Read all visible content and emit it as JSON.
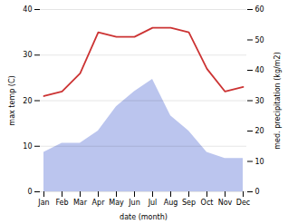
{
  "chart_data": {
    "type": "line",
    "xlabel": "date (month)",
    "ylabel": "max temp (C)",
    "y2label": "med. precipitation (kg/m2)",
    "categories": [
      "Jan",
      "Feb",
      "Mar",
      "Apr",
      "May",
      "Jun",
      "Jul",
      "Aug",
      "Sep",
      "Oct",
      "Nov",
      "Dec"
    ],
    "series": [
      {
        "type": "area",
        "axis": "y2",
        "color": "#bbc5ee",
        "values": [
          13,
          16,
          16,
          20,
          28,
          33,
          37,
          25,
          20,
          13,
          11,
          11
        ]
      },
      {
        "type": "line",
        "axis": "y",
        "color": "#cc3333",
        "values": [
          21,
          22,
          26,
          35,
          34,
          34,
          36,
          36,
          35,
          27,
          22,
          23
        ]
      }
    ],
    "ylim": [
      0,
      40
    ],
    "yticks": [
      0,
      10,
      20,
      30,
      40
    ],
    "y2lim": [
      0,
      60
    ],
    "y2ticks": [
      0,
      10,
      20,
      30,
      40,
      50,
      60
    ],
    "grid": true
  }
}
